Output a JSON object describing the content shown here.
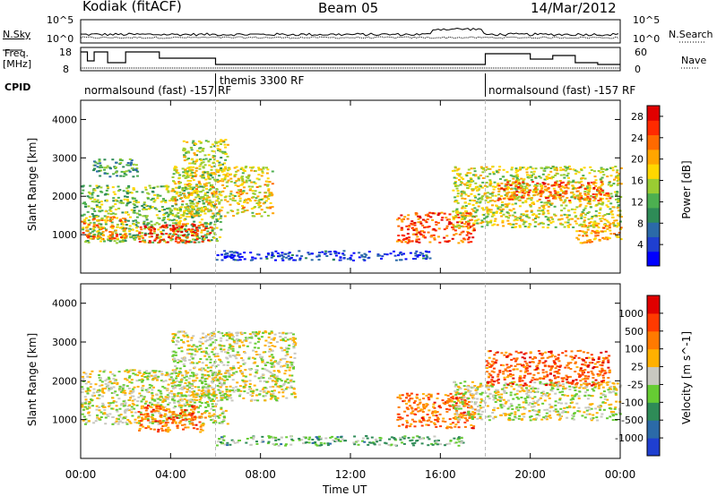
{
  "header": {
    "site": "Kodiak (fitACF)",
    "beam": "Beam 05",
    "date": "14/Mar/2012"
  },
  "strips": {
    "nsky_label": "N.Sky",
    "nsearch_label": "N.Search",
    "freq_label_1": "Freq.",
    "freq_label_2": "[MHz]",
    "nave_label": "Nave",
    "cpid_label": "CPID",
    "nsky_ticks": [
      "10^5",
      "10^0"
    ],
    "nsearch_ticks": [
      "10^5",
      "10^0"
    ],
    "freq_ticks": [
      "18",
      "8"
    ],
    "nave_ticks": [
      "60",
      "0"
    ],
    "cpid_segments": [
      {
        "text": "normalsound (fast) -157 RF",
        "start_hour": 0,
        "end_hour": 6
      },
      {
        "text": "themis 3300 RF",
        "start_hour": 6,
        "end_hour": 18
      },
      {
        "text": "normalsound (fast) -157 RF",
        "start_hour": 18,
        "end_hour": 24
      }
    ]
  },
  "chart_data": [
    {
      "type": "heatmap",
      "name": "power",
      "ylabel": "Slant Range [km]",
      "xlabel": "Time UT",
      "xlim": [
        0,
        24
      ],
      "ylim": [
        0,
        4500
      ],
      "y_ticks": [
        1000,
        2000,
        3000,
        4000
      ],
      "x_tick_labels": [
        "00:00",
        "04:00",
        "08:00",
        "12:00",
        "16:00",
        "20:00",
        "00:00"
      ],
      "colorbar": {
        "label": "Power [dB]",
        "tick_labels": [
          "4",
          "8",
          "12",
          "16",
          "20",
          "24",
          "28"
        ],
        "range": [
          0,
          30
        ],
        "colors": [
          "#0000ff",
          "#1f3fd0",
          "#2b6aa8",
          "#2e8b57",
          "#4caf50",
          "#9acd32",
          "#ffd700",
          "#ffa500",
          "#ff6a00",
          "#ff2a00",
          "#e00000"
        ]
      },
      "regions": [
        {
          "t0": 0.0,
          "t1": 6.2,
          "r0": 800,
          "r1": 2300,
          "level": 0.45
        },
        {
          "t0": 0.0,
          "t1": 2.0,
          "r0": 900,
          "r1": 1500,
          "level": 0.75
        },
        {
          "t0": 2.5,
          "t1": 5.8,
          "r0": 800,
          "r1": 1300,
          "level": 0.9
        },
        {
          "t0": 4.0,
          "t1": 8.5,
          "r0": 1500,
          "r1": 2800,
          "level": 0.6
        },
        {
          "t0": 4.5,
          "t1": 6.5,
          "r0": 2500,
          "r1": 3500,
          "level": 0.5
        },
        {
          "t0": 0.5,
          "t1": 2.5,
          "r0": 2500,
          "r1": 3000,
          "level": 0.35
        },
        {
          "t0": 6.0,
          "t1": 15.5,
          "r0": 350,
          "r1": 600,
          "level": 0.1
        },
        {
          "t0": 14.0,
          "t1": 17.5,
          "r0": 800,
          "r1": 1600,
          "level": 0.85
        },
        {
          "t0": 16.5,
          "t1": 24.0,
          "r0": 1200,
          "r1": 2800,
          "level": 0.55
        },
        {
          "t0": 18.5,
          "t1": 23.5,
          "r0": 1900,
          "r1": 2400,
          "level": 0.8
        },
        {
          "t0": 22.0,
          "t1": 24.0,
          "r0": 800,
          "r1": 1400,
          "level": 0.7
        }
      ]
    },
    {
      "type": "heatmap",
      "name": "velocity",
      "ylabel": "Slant Range [km]",
      "xlabel": "Time UT",
      "xlim": [
        0,
        24
      ],
      "ylim": [
        0,
        4500
      ],
      "y_ticks": [
        1000,
        2000,
        3000,
        4000
      ],
      "x_tick_labels": [
        "00:00",
        "04:00",
        "08:00",
        "12:00",
        "16:00",
        "20:00",
        "00:00"
      ],
      "colorbar": {
        "label": "Velocity [m s^-1]",
        "tick_labels": [
          "1000",
          "500",
          "100",
          "25",
          "-25",
          "-100",
          "-500",
          "-1000"
        ],
        "colors": [
          "#1f3fd0",
          "#2b6aa8",
          "#2e8b57",
          "#66cc33",
          "#c8c8c0",
          "#ffb000",
          "#ff7a00",
          "#ff3a00",
          "#e00000"
        ]
      },
      "regions": [
        {
          "t0": 0.0,
          "t1": 6.5,
          "r0": 900,
          "r1": 2300,
          "level": 0.5
        },
        {
          "t0": 4.0,
          "t1": 9.5,
          "r0": 1500,
          "r1": 3300,
          "level": 0.5
        },
        {
          "t0": 2.5,
          "t1": 5.5,
          "r0": 700,
          "r1": 1400,
          "level": 0.78
        },
        {
          "t0": 14.0,
          "t1": 17.5,
          "r0": 800,
          "r1": 1700,
          "level": 0.78
        },
        {
          "t0": 16.5,
          "t1": 24.0,
          "r0": 1000,
          "r1": 2000,
          "level": 0.5
        },
        {
          "t0": 18.0,
          "t1": 23.5,
          "r0": 1900,
          "r1": 2800,
          "level": 0.82
        },
        {
          "t0": 6.0,
          "t1": 17.0,
          "r0": 350,
          "r1": 600,
          "level": 0.35
        }
      ]
    }
  ]
}
